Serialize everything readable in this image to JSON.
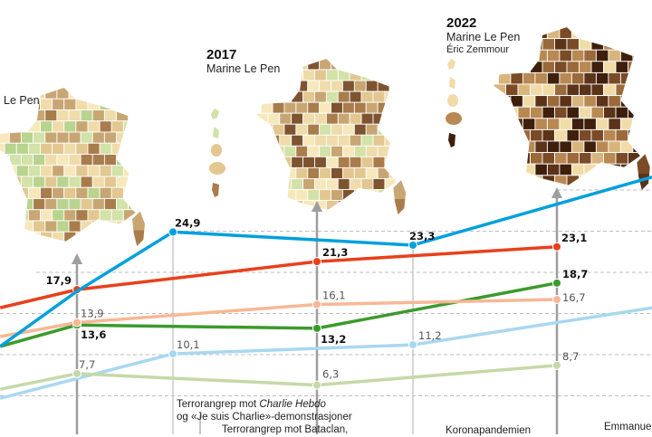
{
  "chart_data": {
    "type": "line",
    "title": "",
    "xlabel": "",
    "ylabel": "",
    "xlim": [
      2010.4,
      2024
    ],
    "ylim": [
      0,
      32
    ],
    "grid": true,
    "gridlines": [
      5,
      10,
      15,
      20,
      25,
      30
    ],
    "series": [
      {
        "color": "#00a0dc",
        "points": [
          {
            "x": 2010.4,
            "y": 11.0
          },
          {
            "x": 2012,
            "y": 17.7
          },
          {
            "x": 2014,
            "y": 24.9,
            "label": "24,9"
          },
          {
            "x": 2019,
            "y": 23.3,
            "label": "23,3"
          },
          {
            "x": 2024,
            "y": 31.6
          }
        ],
        "bold": true
      },
      {
        "color": "#e8401c",
        "points": [
          {
            "x": 2010.4,
            "y": 15.7
          },
          {
            "x": 2012,
            "y": 17.9,
            "label": "17,9"
          },
          {
            "x": 2017,
            "y": 21.3,
            "label": "21,3"
          },
          {
            "x": 2022,
            "y": 23.1,
            "label": "23,1"
          }
        ],
        "bold": true
      },
      {
        "color": "#f6b896",
        "points": [
          {
            "x": 2010.4,
            "y": 12.2
          },
          {
            "x": 2012,
            "y": 13.9,
            "label": "13,9"
          },
          {
            "x": 2017,
            "y": 16.1,
            "label": "16,1"
          },
          {
            "x": 2022,
            "y": 16.7,
            "label": "16,7"
          }
        ],
        "bold": false
      },
      {
        "color": "#3c9a2c",
        "points": [
          {
            "x": 2010.4,
            "y": 11.0
          },
          {
            "x": 2012,
            "y": 13.6,
            "label": "13,6"
          },
          {
            "x": 2017,
            "y": 13.2,
            "label": "13,2"
          },
          {
            "x": 2022,
            "y": 18.7,
            "label": "18,7"
          }
        ],
        "bold": true
      },
      {
        "color": "#c5d9a8",
        "points": [
          {
            "x": 2010.4,
            "y": 5.8
          },
          {
            "x": 2012,
            "y": 7.7,
            "label": "7,7"
          },
          {
            "x": 2017,
            "y": 6.3,
            "label": "6,3"
          },
          {
            "x": 2022,
            "y": 8.7,
            "label": "8,7"
          }
        ],
        "bold": false
      },
      {
        "color": "#a8d8f0",
        "points": [
          {
            "x": 2010.4,
            "y": 4.7
          },
          {
            "x": 2012,
            "y": 7.1
          },
          {
            "x": 2014,
            "y": 10.1,
            "label": "10,1"
          },
          {
            "x": 2019,
            "y": 11.2,
            "label": "11,2"
          },
          {
            "x": 2024,
            "y": 15.7
          }
        ],
        "bold": false
      }
    ],
    "markers": {
      "elections": [
        2012,
        2017,
        2022
      ],
      "events": [
        2014,
        2019
      ]
    }
  },
  "maps": [
    {
      "year": "",
      "name": "Le Pen",
      "name2": "",
      "palette": [
        "#f7e8bc",
        "#efdcaa",
        "#e2c790",
        "#c8a673",
        "#a97c4c",
        "#d2e2a8",
        "#b9d48e"
      ]
    },
    {
      "year": "2017",
      "name": "Marine Le Pen",
      "name2": "",
      "palette": [
        "#f7e8bc",
        "#efdcaa",
        "#e2c790",
        "#c8a673",
        "#a97c4c",
        "#7e5430",
        "#d2e2a8"
      ]
    },
    {
      "year": "2022",
      "name": "Marine Le Pen",
      "name2": "Éric Zemmour",
      "palette": [
        "#d9b57e",
        "#b98953",
        "#9a6a3a",
        "#7a4b26",
        "#5b3318",
        "#3e1f0c",
        "#f1dca8"
      ]
    }
  ],
  "annotations": {
    "charlie_pre": "Terrorangrep mot ",
    "charlie_italic": "Charlie Hebdo",
    "charlie_line2": "og «Je suis Charlie»-demonstrasjoner",
    "bataclan": "Terrorangrep mot Bataclan,",
    "corona": "Koronapandemien",
    "emmanuel": "Emmanuel"
  }
}
